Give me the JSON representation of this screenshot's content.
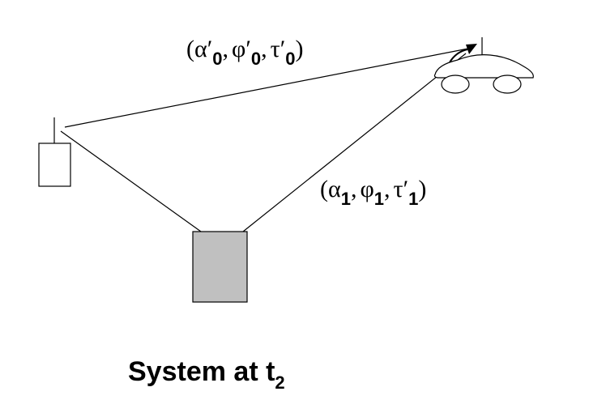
{
  "label_top": {
    "open": "(",
    "sym1": "α′",
    "sub1": "0",
    "sep1": ",",
    "sym2": "φ′",
    "sub2": "0",
    "sep2": ",",
    "sym3": "τ′",
    "sub3": "0",
    "close": ")"
  },
  "label_right": {
    "open": "(",
    "sym1": "α",
    "sub1": "1",
    "sep1": ",",
    "sym2": "φ",
    "sub2": "1",
    "sep2": ",",
    "sym3": "τ′",
    "sub3": "1",
    "close": ")"
  },
  "caption": {
    "text": "System at t",
    "subscript": "2"
  },
  "colors": {
    "scatterer_fill": "#c0c0c0",
    "stroke": "#000000"
  }
}
